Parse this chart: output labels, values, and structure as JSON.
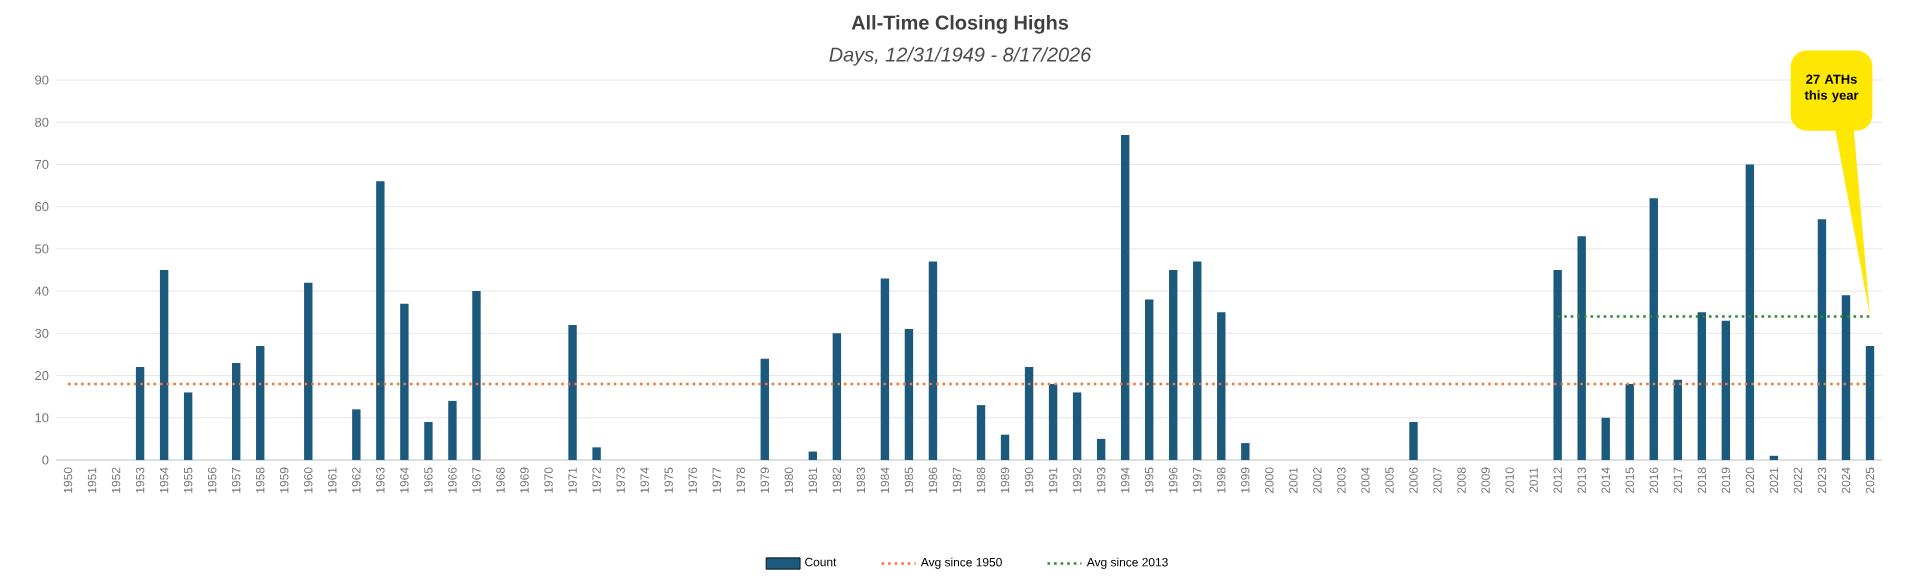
{
  "chart_data": {
    "type": "bar",
    "title": "All-Time Closing Highs",
    "subtitle": "Days, 12/31/1949 - 8/17/2026",
    "categories": [
      "1950",
      "1951",
      "1952",
      "1953",
      "1954",
      "1955",
      "1956",
      "1957",
      "1958",
      "1959",
      "1960",
      "1961",
      "1962",
      "1963",
      "1964",
      "1965",
      "1966",
      "1967",
      "1968",
      "1969",
      "1970",
      "1971",
      "1972",
      "1973",
      "1974",
      "1975",
      "1976",
      "1977",
      "1978",
      "1979",
      "1980",
      "1981",
      "1982",
      "1983",
      "1984",
      "1985",
      "1986",
      "1987",
      "1988",
      "1989",
      "1990",
      "1991",
      "1992",
      "1993",
      "1994",
      "1995",
      "1996",
      "1997",
      "1998",
      "1999",
      "2000",
      "2001",
      "2002",
      "2003",
      "2004",
      "2005",
      "2006",
      "2007",
      "2008",
      "2009",
      "2010",
      "2011",
      "2012",
      "2013",
      "2014",
      "2015",
      "2016",
      "2017",
      "2018",
      "2019",
      "2020",
      "2021",
      "2022",
      "2023",
      "2024",
      "2025"
    ],
    "series": [
      {
        "name": "Count",
        "color": "#1b5a7d",
        "values": [
          0,
          0,
          0,
          22,
          45,
          16,
          0,
          23,
          27,
          0,
          42,
          0,
          12,
          66,
          37,
          9,
          14,
          40,
          0,
          0,
          0,
          32,
          3,
          0,
          0,
          0,
          0,
          0,
          0,
          24,
          0,
          2,
          30,
          0,
          43,
          31,
          47,
          0,
          13,
          6,
          22,
          18,
          16,
          5,
          77,
          38,
          45,
          47,
          35,
          4,
          0,
          0,
          0,
          0,
          0,
          0,
          9,
          0,
          0,
          0,
          0,
          0,
          45,
          53,
          10,
          18,
          62,
          19,
          35,
          33,
          70,
          1,
          0,
          57,
          39,
          27
        ]
      },
      {
        "name": "Avg since 1950",
        "type": "line",
        "color": "#f4743b",
        "line_style": "dotted",
        "values": [
          18,
          18,
          18,
          18,
          18,
          18,
          18,
          18,
          18,
          18,
          18,
          18,
          18,
          18,
          18,
          18,
          18,
          18,
          18,
          18,
          18,
          18,
          18,
          18,
          18,
          18,
          18,
          18,
          18,
          18,
          18,
          18,
          18,
          18,
          18,
          18,
          18,
          18,
          18,
          18,
          18,
          18,
          18,
          18,
          18,
          18,
          18,
          18,
          18,
          18,
          18,
          18,
          18,
          18,
          18,
          18,
          18,
          18,
          18,
          18,
          18,
          18,
          18,
          18,
          18,
          18,
          18,
          18,
          18,
          18,
          18,
          18,
          18,
          18,
          18,
          18
        ]
      },
      {
        "name": "Avg since 2013",
        "type": "line",
        "color": "#2e8b2e",
        "line_style": "dotted",
        "values": [
          null,
          null,
          null,
          null,
          null,
          null,
          null,
          null,
          null,
          null,
          null,
          null,
          null,
          null,
          null,
          null,
          null,
          null,
          null,
          null,
          null,
          null,
          null,
          null,
          null,
          null,
          null,
          null,
          null,
          null,
          null,
          null,
          null,
          null,
          null,
          null,
          null,
          null,
          null,
          null,
          null,
          null,
          null,
          null,
          null,
          null,
          null,
          null,
          null,
          null,
          null,
          null,
          null,
          null,
          null,
          null,
          null,
          null,
          null,
          null,
          null,
          null,
          34,
          34,
          34,
          34,
          34,
          34,
          34,
          34,
          34,
          34,
          34,
          34,
          34,
          34
        ]
      }
    ],
    "ylim": [
      0,
      90
    ],
    "yticks": [
      0,
      10,
      20,
      30,
      40,
      50,
      60,
      70,
      80,
      90
    ],
    "grid": "y",
    "legend": "bottom",
    "annotations": [
      "27 ATHs this year"
    ]
  }
}
